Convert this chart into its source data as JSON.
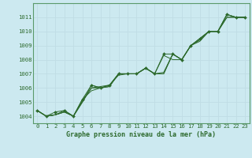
{
  "title": "Graphe pression niveau de la mer (hPa)",
  "bg_color": "#cce9f0",
  "grid_color": "#b8d8e0",
  "line_color": "#2d6a2d",
  "xlim": [
    -0.5,
    23.5
  ],
  "ylim": [
    1003.5,
    1012.0
  ],
  "xticks": [
    0,
    1,
    2,
    3,
    4,
    5,
    6,
    7,
    8,
    9,
    10,
    11,
    12,
    13,
    14,
    15,
    16,
    17,
    18,
    19,
    20,
    21,
    22,
    23
  ],
  "yticks": [
    1004,
    1005,
    1006,
    1007,
    1008,
    1009,
    1010,
    1011
  ],
  "series": [
    [
      1004.4,
      1004.0,
      1004.1,
      1004.3,
      1004.0,
      1005.0,
      1006.2,
      1006.0,
      1006.1,
      1007.0,
      1007.0,
      1007.0,
      1007.4,
      1007.0,
      1007.1,
      1008.4,
      1008.0,
      1009.0,
      1009.3,
      1010.0,
      1010.0,
      1011.2,
      1011.0,
      1011.0
    ],
    [
      1004.4,
      1004.0,
      1004.1,
      1004.3,
      1004.0,
      1005.0,
      1006.0,
      1006.1,
      1006.2,
      1006.9,
      1007.0,
      1007.0,
      1007.4,
      1007.0,
      1007.0,
      1008.4,
      1008.0,
      1009.0,
      1009.4,
      1010.0,
      1010.0,
      1011.0,
      1011.0,
      1011.0
    ],
    [
      1004.4,
      1004.0,
      1004.1,
      1004.3,
      1004.0,
      1005.1,
      1006.0,
      1006.0,
      1006.1,
      1007.0,
      1007.0,
      1007.0,
      1007.4,
      1007.0,
      1008.3,
      1008.0,
      1008.0,
      1009.0,
      1009.4,
      1010.0,
      1010.0,
      1011.2,
      1011.0,
      1011.0
    ],
    [
      1004.4,
      1004.0,
      1004.1,
      1004.4,
      1004.0,
      1005.2,
      1005.8,
      1006.0,
      1006.2,
      1007.0,
      1007.0,
      1007.0,
      1007.4,
      1007.0,
      1007.0,
      1008.4,
      1008.0,
      1009.0,
      1009.5,
      1010.0,
      1010.0,
      1011.0,
      1011.0,
      1011.0
    ]
  ],
  "main_series_y": [
    1004.4,
    1004.0,
    1004.3,
    1004.4,
    1004.0,
    1005.2,
    1006.2,
    1006.0,
    1006.2,
    1007.0,
    1007.0,
    1007.0,
    1007.4,
    1007.0,
    1008.4,
    1008.4,
    1008.0,
    1009.0,
    1009.5,
    1010.0,
    1010.0,
    1011.2,
    1011.0,
    1011.0
  ]
}
